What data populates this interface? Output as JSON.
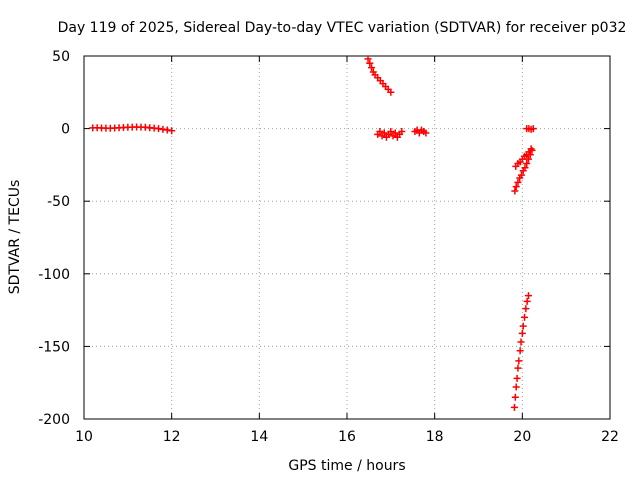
{
  "chart_data": {
    "type": "scatter",
    "title": "Day 119 of 2025, Sidereal Day-to-day VTEC variation (SDTVAR) for receiver p032",
    "xlabel": "GPS time / hours",
    "ylabel": "SDTVAR / TECUs",
    "xlim": [
      10,
      22
    ],
    "ylim": [
      -200,
      50
    ],
    "xticks": [
      "10",
      "12",
      "14",
      "16",
      "18",
      "20",
      "22"
    ],
    "yticks": [
      "50",
      "0",
      "-50",
      "-100",
      "-150",
      "-200"
    ],
    "grid": true,
    "marker": "+",
    "color": "#ff0000",
    "series": [
      {
        "name": "segment-1",
        "points": [
          [
            10.2,
            0.5
          ],
          [
            10.3,
            0.6
          ],
          [
            10.4,
            0.4
          ],
          [
            10.5,
            0.3
          ],
          [
            10.6,
            0.2
          ],
          [
            10.7,
            0.4
          ],
          [
            10.8,
            0.6
          ],
          [
            10.9,
            0.8
          ],
          [
            11.0,
            0.9
          ],
          [
            11.1,
            1.0
          ],
          [
            11.2,
            1.1
          ],
          [
            11.3,
            1.0
          ],
          [
            11.4,
            0.9
          ],
          [
            11.5,
            0.6
          ],
          [
            11.6,
            0.3
          ],
          [
            11.7,
            0.0
          ],
          [
            11.8,
            -0.5
          ],
          [
            11.9,
            -1.0
          ],
          [
            12.0,
            -1.5
          ]
        ]
      },
      {
        "name": "segment-2",
        "points": [
          [
            16.48,
            48
          ],
          [
            16.52,
            45
          ],
          [
            16.56,
            42
          ],
          [
            16.6,
            39
          ],
          [
            16.64,
            37
          ],
          [
            16.7,
            35
          ],
          [
            16.76,
            33
          ],
          [
            16.82,
            31
          ],
          [
            16.88,
            29
          ],
          [
            16.94,
            27
          ],
          [
            17.0,
            25
          ]
        ]
      },
      {
        "name": "segment-3",
        "points": [
          [
            16.7,
            -4
          ],
          [
            16.75,
            -2
          ],
          [
            16.8,
            -5
          ],
          [
            16.85,
            -3
          ],
          [
            16.9,
            -6
          ],
          [
            16.95,
            -4
          ],
          [
            17.0,
            -2
          ],
          [
            17.05,
            -5
          ],
          [
            17.1,
            -3
          ],
          [
            17.15,
            -6
          ],
          [
            17.2,
            -4
          ],
          [
            17.25,
            -2
          ]
        ]
      },
      {
        "name": "segment-4",
        "points": [
          [
            17.55,
            -2
          ],
          [
            17.6,
            -1
          ],
          [
            17.65,
            -3
          ],
          [
            17.7,
            -1
          ],
          [
            17.75,
            -2
          ],
          [
            17.8,
            -3
          ]
        ]
      },
      {
        "name": "segment-5",
        "points": [
          [
            20.1,
            0
          ],
          [
            20.15,
            0
          ],
          [
            20.2,
            -0.5
          ],
          [
            20.25,
            0
          ]
        ]
      },
      {
        "name": "segment-6",
        "points": [
          [
            19.85,
            -26
          ],
          [
            19.9,
            -24
          ],
          [
            19.95,
            -23
          ],
          [
            20.0,
            -21
          ],
          [
            20.05,
            -19
          ],
          [
            20.1,
            -18
          ],
          [
            20.15,
            -16
          ],
          [
            20.2,
            -14
          ]
        ]
      },
      {
        "name": "segment-7",
        "points": [
          [
            19.83,
            -43
          ],
          [
            19.86,
            -40
          ],
          [
            19.9,
            -37
          ],
          [
            19.94,
            -34
          ],
          [
            19.98,
            -32
          ],
          [
            20.02,
            -29
          ],
          [
            20.06,
            -27
          ],
          [
            20.1,
            -24
          ],
          [
            20.14,
            -21
          ],
          [
            20.18,
            -18
          ],
          [
            20.22,
            -15
          ]
        ]
      },
      {
        "name": "segment-8",
        "points": [
          [
            19.82,
            -192
          ],
          [
            19.84,
            -185
          ],
          [
            19.86,
            -178
          ],
          [
            19.88,
            -172
          ],
          [
            19.9,
            -165
          ],
          [
            19.92,
            -160
          ],
          [
            19.95,
            -153
          ],
          [
            19.97,
            -147
          ],
          [
            20.0,
            -141
          ],
          [
            20.02,
            -136
          ],
          [
            20.05,
            -130
          ],
          [
            20.08,
            -124
          ],
          [
            20.11,
            -119
          ],
          [
            20.14,
            -115
          ]
        ]
      }
    ]
  }
}
